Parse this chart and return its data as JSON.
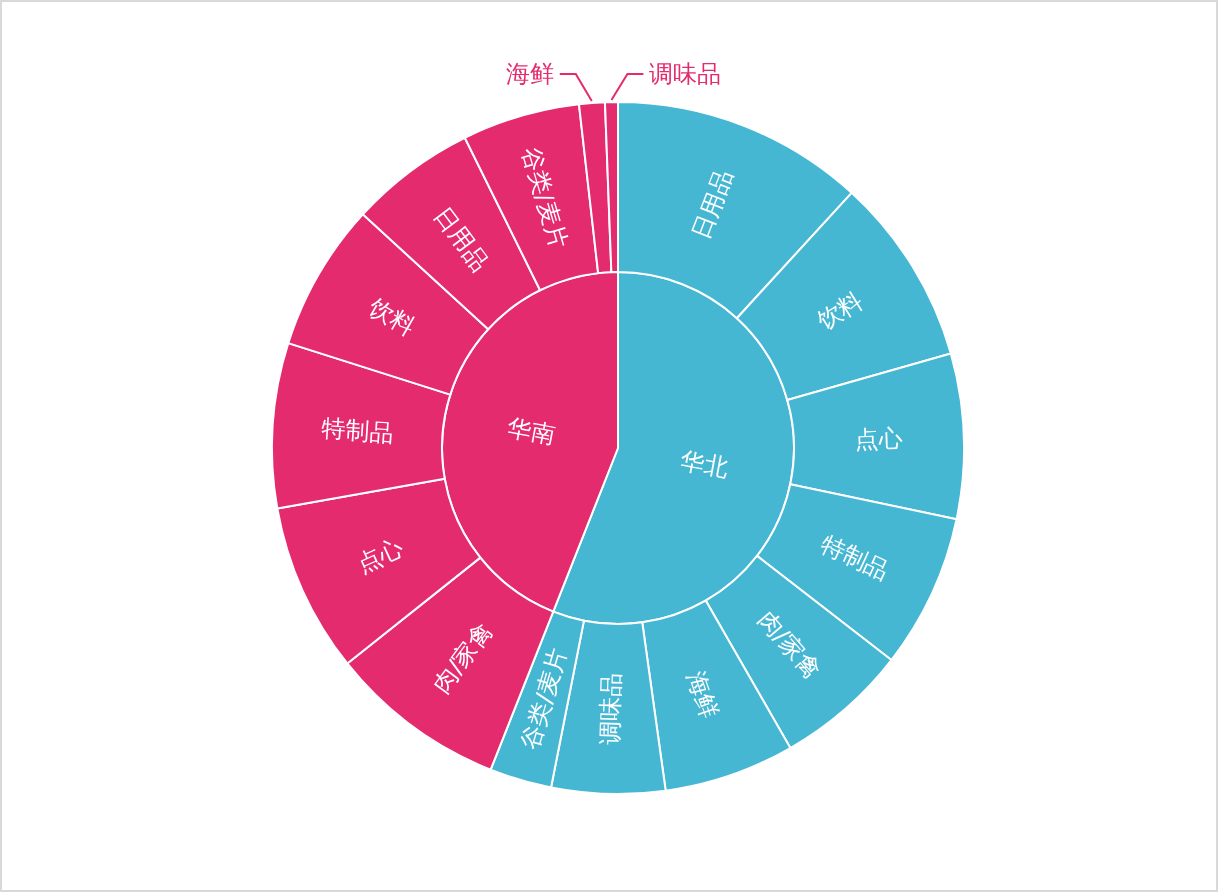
{
  "chart_data": [
    {
      "type": "pie",
      "categories": [
        "华北",
        "华南"
      ],
      "values": [
        56.0,
        44.0
      ],
      "colors": [
        "#46b7d3",
        "#e32b6e"
      ]
    },
    {
      "type": "donut",
      "categories": [
        "日用品",
        "饮料",
        "点心",
        "特制品",
        "肉/家禽",
        "海鲜",
        "调味品",
        "谷类/麦片",
        "肉/家禽",
        "点心",
        "特制品",
        "饮料",
        "日用品",
        "谷类/麦片",
        "海鲜",
        "调味品"
      ],
      "values": [
        11.8,
        8.8,
        7.7,
        7.2,
        6.2,
        6.1,
        5.3,
        2.9,
        8.3,
        7.9,
        7.7,
        6.9,
        5.9,
        5.5,
        1.2,
        0.6
      ],
      "colors": [
        "#46b7d3",
        "#46b7d3",
        "#46b7d3",
        "#46b7d3",
        "#46b7d3",
        "#46b7d3",
        "#46b7d3",
        "#46b7d3",
        "#e32b6e",
        "#e32b6e",
        "#e32b6e",
        "#e32b6e",
        "#e32b6e",
        "#e32b6e",
        "#e32b6e",
        "#e32b6e"
      ]
    }
  ]
}
